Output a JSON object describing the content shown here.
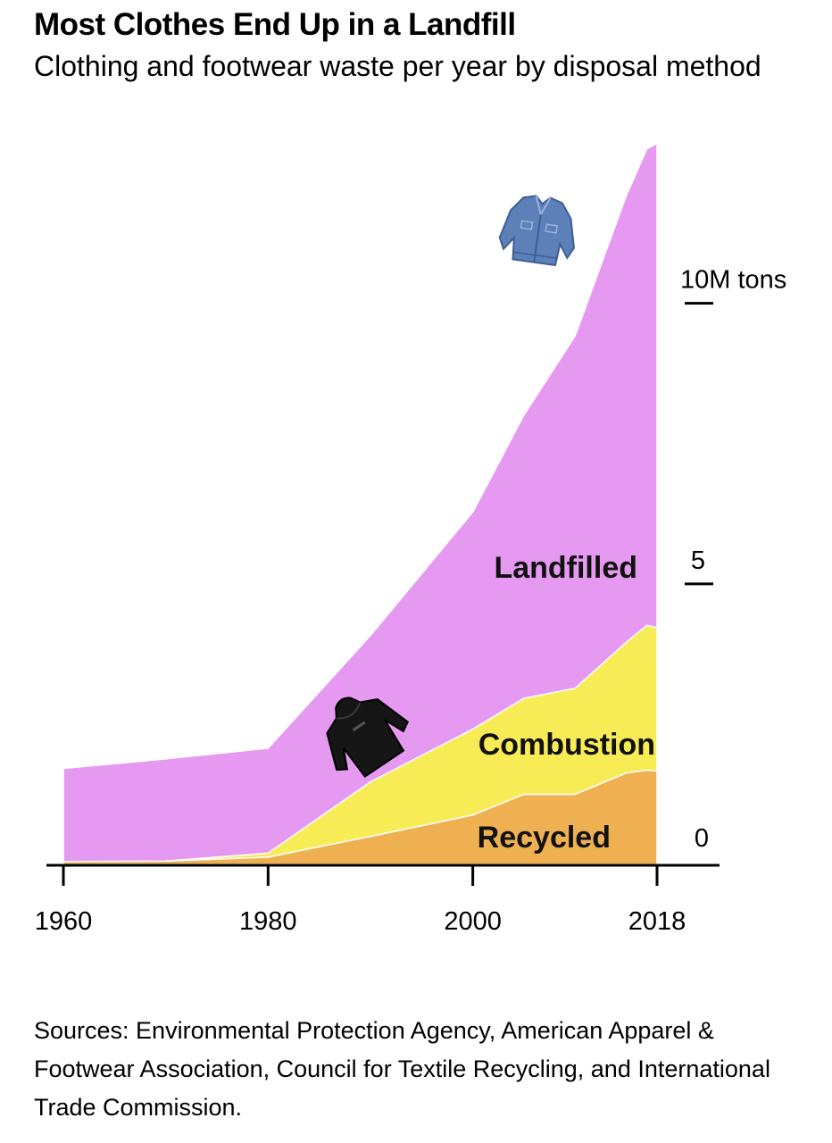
{
  "header": {
    "title": "Most Clothes End Up in a Landfill",
    "subtitle": "Clothing and footwear waste per year by disposal method"
  },
  "source": "Sources: Environmental Protection Agency, American Apparel & Footwear Association, Council for Textile Recycling, and International Trade Commission.",
  "icons": {
    "upper": "denim-jacket-icon",
    "lower": "black-hoodie-icon"
  },
  "colors": {
    "landfilled": "#e699f0",
    "combustion": "#f7ec55",
    "recycled": "#efb052"
  },
  "chart_data": {
    "type": "area",
    "stacked": true,
    "x": [
      1960,
      1970,
      1980,
      1990,
      2000,
      2005,
      2010,
      2015,
      2017,
      2018
    ],
    "xticks": [
      "1960",
      "1980",
      "2000",
      "2018"
    ],
    "xtick_values": [
      1960,
      1980,
      2000,
      2018
    ],
    "xlim": [
      1960,
      2018
    ],
    "ylim": [
      0,
      12.7
    ],
    "yticks": [
      {
        "value": 10,
        "label": "10M tons"
      },
      {
        "value": 5,
        "label": "5"
      },
      {
        "value": 0,
        "label": "0"
      }
    ],
    "series": [
      {
        "name": "Recycled",
        "key": "recycled",
        "values": [
          0.05,
          0.06,
          0.13,
          0.5,
          0.88,
          1.25,
          1.25,
          1.63,
          1.68,
          1.67
        ]
      },
      {
        "name": "Combustion",
        "key": "combustion",
        "values": [
          0.0,
          0.0,
          0.07,
          0.97,
          1.53,
          1.71,
          1.89,
          2.33,
          2.58,
          2.55
        ]
      },
      {
        "name": "Landfilled",
        "key": "landfilled",
        "values": [
          1.66,
          1.82,
          1.87,
          2.61,
          3.87,
          5.05,
          6.28,
          7.96,
          8.49,
          8.63
        ]
      }
    ],
    "labels": {
      "landfilled": "Landfilled",
      "combustion": "Combustion",
      "recycled": "Recycled"
    }
  }
}
